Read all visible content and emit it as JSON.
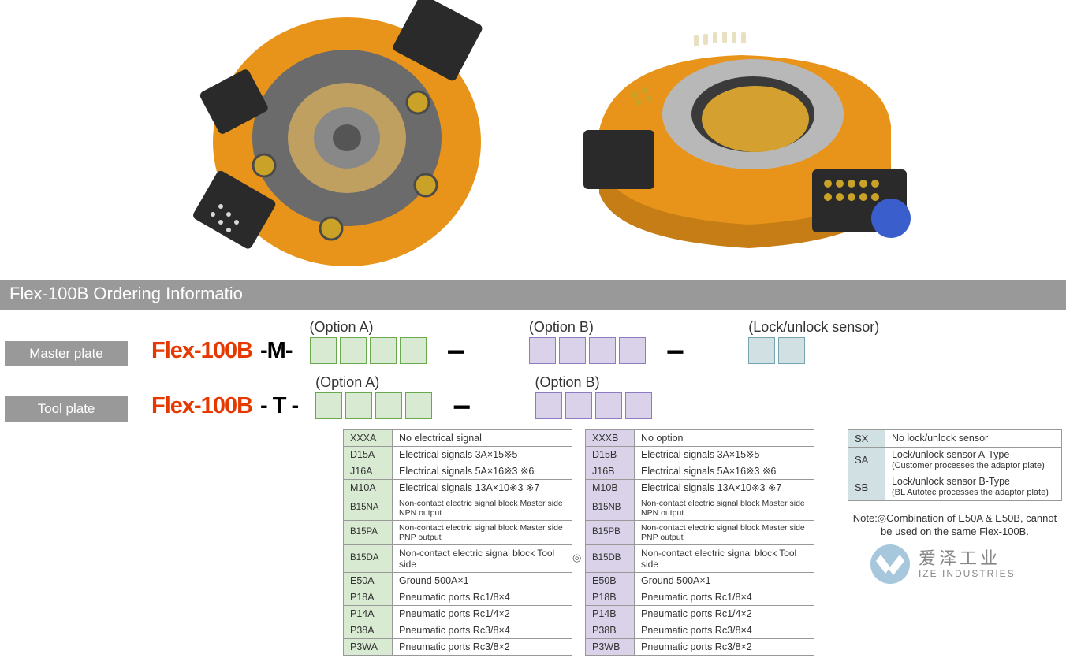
{
  "section_title": "Flex-100B Ordering Informatio",
  "brand": "Flex-100B",
  "master_plate_label": "Master plate",
  "tool_plate_label": "Tool plate",
  "master_suffix": "-M-",
  "tool_suffix": "- T -",
  "option_a_label": "(Option A)",
  "option_b_label": "(Option B)",
  "sensor_label": "(Lock/unlock sensor)",
  "dash": "−",
  "optionA_rows": [
    {
      "code": "XXXA",
      "desc": "No electrical signal"
    },
    {
      "code": "D15A",
      "desc": "Electrical signals 3A×15※5"
    },
    {
      "code": "J16A",
      "desc": "Electrical signals 5A×16※3 ※6"
    },
    {
      "code": "M10A",
      "desc": "Electrical signals 13A×10※3 ※7"
    },
    {
      "code": "B15NA",
      "desc": "Non-contact electric signal block  Master side  NPN output",
      "small": true
    },
    {
      "code": "B15PA",
      "desc": "Non-contact electric signal block  Master side  PNP output",
      "small": true
    },
    {
      "code": "B15DA",
      "desc": "Non-contact electric signal block  Tool side",
      "small": true,
      "sz": "12"
    },
    {
      "code": "E50A",
      "desc": "Ground 500A×1",
      "mark": true
    },
    {
      "code": "P18A",
      "desc": "Pneumatic ports Rc1/8×4"
    },
    {
      "code": "P14A",
      "desc": "Pneumatic ports Rc1/4×2"
    },
    {
      "code": "P38A",
      "desc": "Pneumatic ports Rc3/8×4"
    },
    {
      "code": "P3WA",
      "desc": "Pneumatic ports Rc3/8×2"
    }
  ],
  "optionB_rows": [
    {
      "code": "XXXB",
      "desc": "No option"
    },
    {
      "code": "D15B",
      "desc": "Electrical signals 3A×15※5"
    },
    {
      "code": "J16B",
      "desc": "Electrical signals 5A×16※3 ※6"
    },
    {
      "code": "M10B",
      "desc": "Electrical signals 13A×10※3 ※7"
    },
    {
      "code": "B15NB",
      "desc": "Non-contact electric signal block  Master side  NPN output",
      "small": true
    },
    {
      "code": "B15PB",
      "desc": "Non-contact electric signal block  Master side  PNP output",
      "small": true
    },
    {
      "code": "B15DB",
      "desc": "Non-contact electric signal block  Tool side",
      "small": true,
      "sz": "12"
    },
    {
      "code": "E50B",
      "desc": "Ground 500A×1",
      "mark": true
    },
    {
      "code": "P18B",
      "desc": "Pneumatic ports Rc1/8×4"
    },
    {
      "code": "P14B",
      "desc": "Pneumatic ports Rc1/4×2"
    },
    {
      "code": "P38B",
      "desc": "Pneumatic ports Rc3/8×4"
    },
    {
      "code": "P3WB",
      "desc": "Pneumatic ports Rc3/8×2"
    }
  ],
  "sensor_rows": [
    {
      "code": "SX",
      "desc": "No lock/unlock sensor"
    },
    {
      "code": "SA",
      "desc": "Lock/unlock sensor A-Type",
      "sub": "(Customer processes the adaptor plate)"
    },
    {
      "code": "SB",
      "desc": "Lock/unlock sensor B-Type",
      "sub": "(BL Autotec processes the adaptor plate)"
    }
  ],
  "note": "Note:◎Combination of E50A & E50B, cannot be used on the same Flex-100B.",
  "logo_cn": "爱泽工业",
  "logo_en": "IZE INDUSTRIES",
  "circ": "◎"
}
